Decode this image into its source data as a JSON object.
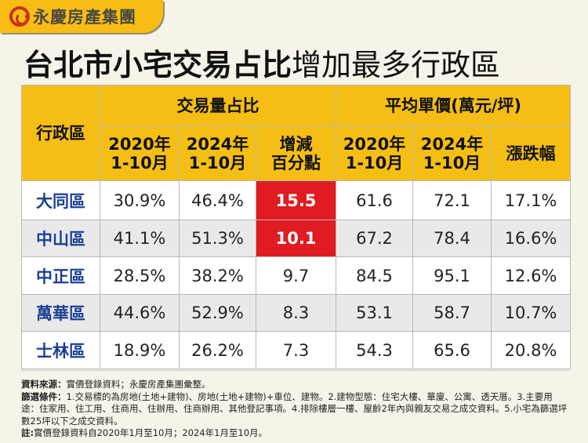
{
  "brand": {
    "name": "永慶房產集團",
    "accent": "#f5be14",
    "logo_color": "#c8331d"
  },
  "title": {
    "bold": "台北市小宅交易占比",
    "regular": "增加最多行政區"
  },
  "table": {
    "district_header": "行政區",
    "group1": "交易量占比",
    "group2": "平均單價(萬元/坪)",
    "sub": [
      [
        "2020年",
        "1-10月"
      ],
      [
        "2024年",
        "1-10月"
      ],
      [
        "增減",
        "百分點"
      ],
      [
        "2020年",
        "1-10月"
      ],
      [
        "2024年",
        "1-10月"
      ],
      [
        "漲跌幅",
        ""
      ]
    ],
    "rows": [
      {
        "district": "大同區",
        "v": [
          "30.9%",
          "46.4%",
          "15.5",
          "61.6",
          "72.1",
          "17.1%"
        ],
        "highlight": true
      },
      {
        "district": "中山區",
        "v": [
          "41.1%",
          "51.3%",
          "10.1",
          "67.2",
          "78.4",
          "16.6%"
        ],
        "highlight": true
      },
      {
        "district": "中正區",
        "v": [
          "28.5%",
          "38.2%",
          "9.7",
          "84.5",
          "95.1",
          "12.6%"
        ],
        "highlight": false
      },
      {
        "district": "萬華區",
        "v": [
          "44.6%",
          "52.9%",
          "8.3",
          "53.1",
          "58.7",
          "10.7%"
        ],
        "highlight": false
      },
      {
        "district": "士林區",
        "v": [
          "18.9%",
          "26.2%",
          "7.3",
          "54.3",
          "65.6",
          "20.8%"
        ],
        "highlight": false
      }
    ],
    "highlight_color": "#e01b22"
  },
  "notes": {
    "source_label": "資料來源：",
    "source": "實價登錄資料；永慶房產集團彙整。",
    "filter_label": "篩選條件：",
    "filter": "1.交易標的為房地(土地+建物)、房地(土地+建物)+車位、建物。2.建物型態：住宅大樓、華廈、公寓、透天厝。3.主要用途：住家用、住工用、住商用、住辦用、住商辦用、其他登記事項。4.排除樓層一樓、屋齡2年內與親友交易之成交資料。5.小宅為篩選坪數25坪以下之成交資料。",
    "note_label": "註:",
    "note": "實價登錄資料自2020年1月至10月；2024年1月至10月。"
  }
}
